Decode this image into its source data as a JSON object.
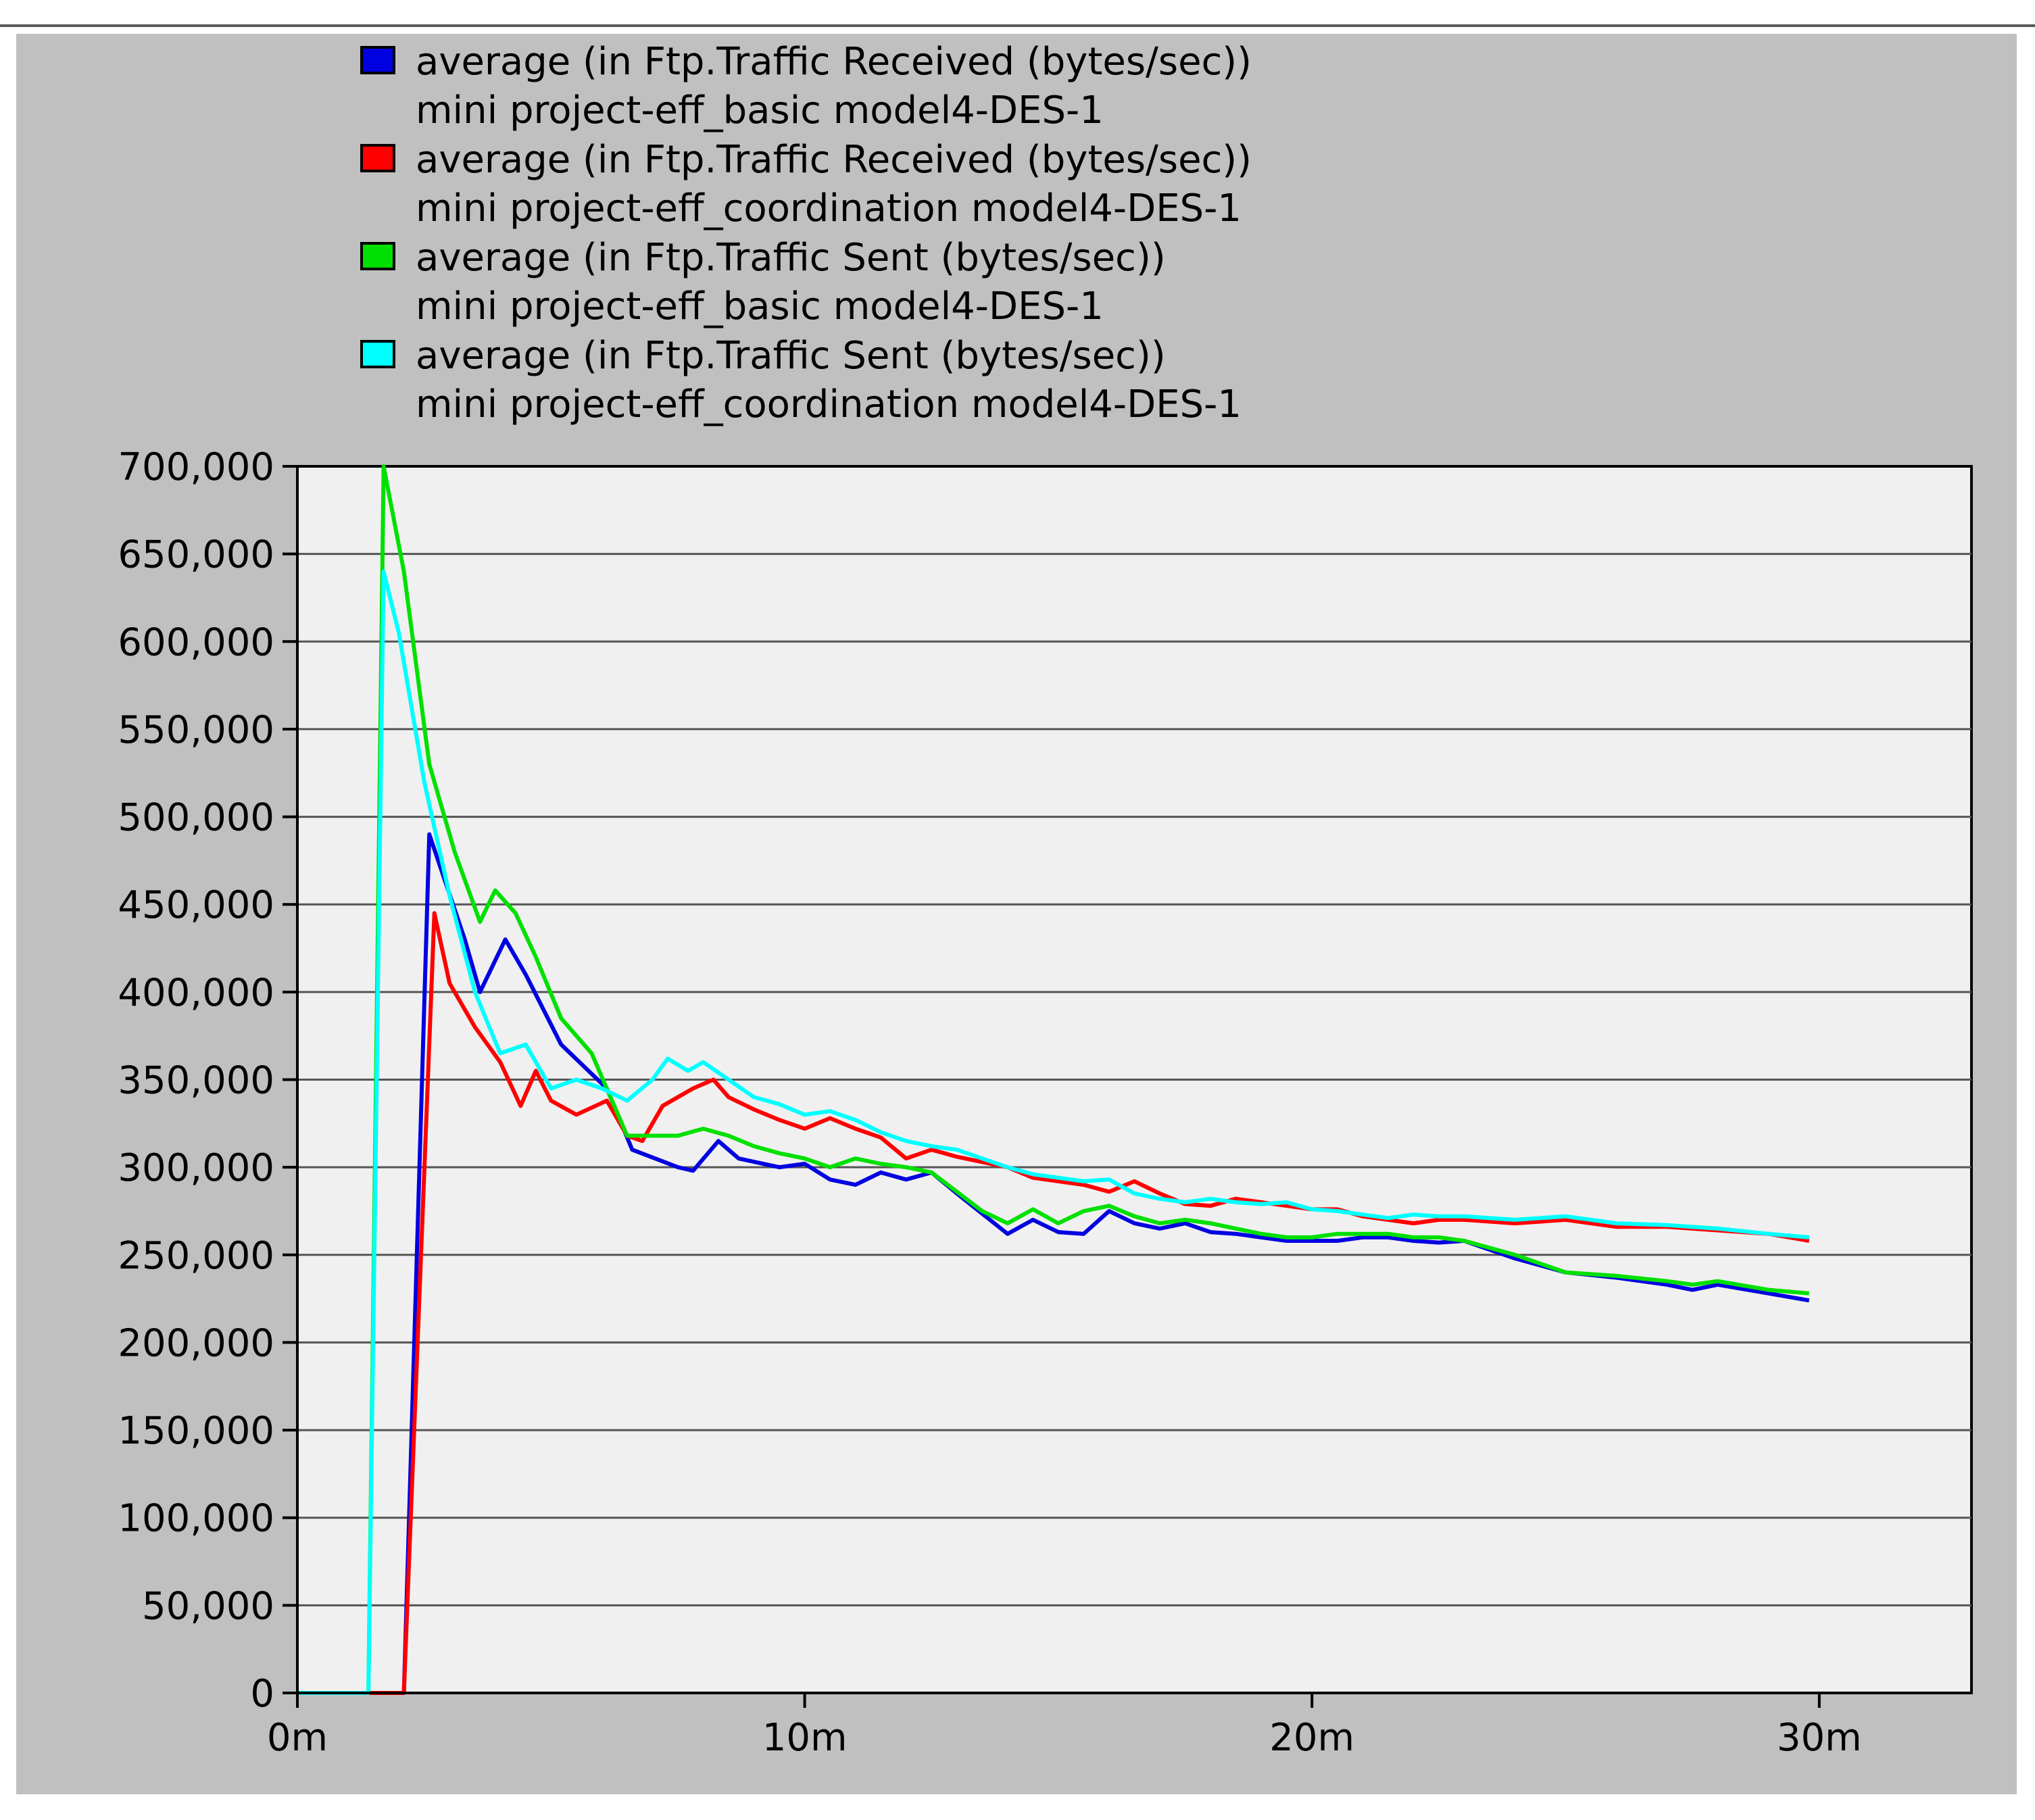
{
  "chart_data": {
    "type": "line",
    "title": "",
    "xlabel": "",
    "ylabel": "",
    "xlim": [
      0,
      33
    ],
    "ylim": [
      0,
      700000
    ],
    "x_ticks": [
      {
        "value": 0,
        "label": "0m"
      },
      {
        "value": 10,
        "label": "10m"
      },
      {
        "value": 20,
        "label": "20m"
      },
      {
        "value": 30,
        "label": "30m"
      }
    ],
    "y_ticks": [
      {
        "value": 0,
        "label": "0"
      },
      {
        "value": 50000,
        "label": "50,000"
      },
      {
        "value": 100000,
        "label": "100,000"
      },
      {
        "value": 150000,
        "label": "150,000"
      },
      {
        "value": 200000,
        "label": "200,000"
      },
      {
        "value": 250000,
        "label": "250,000"
      },
      {
        "value": 300000,
        "label": "300,000"
      },
      {
        "value": 350000,
        "label": "350,000"
      },
      {
        "value": 400000,
        "label": "400,000"
      },
      {
        "value": 450000,
        "label": "450,000"
      },
      {
        "value": 500000,
        "label": "500,000"
      },
      {
        "value": 550000,
        "label": "550,000"
      },
      {
        "value": 600000,
        "label": "600,000"
      },
      {
        "value": 650000,
        "label": "650,000"
      },
      {
        "value": 700000,
        "label": "700,000"
      }
    ],
    "grid": "horizontal",
    "legend_position": "top",
    "series": [
      {
        "name": "average (in Ftp.Traffic Received (bytes/sec))",
        "name_line2": "mini project-eff_basic model4-DES-1",
        "color": "#0000e0",
        "points": [
          [
            0,
            0
          ],
          [
            2.1,
            0
          ],
          [
            2.6,
            490000
          ],
          [
            3.3,
            430000
          ],
          [
            3.6,
            400000
          ],
          [
            4.1,
            430000
          ],
          [
            4.5,
            410000
          ],
          [
            5.2,
            370000
          ],
          [
            6.1,
            345000
          ],
          [
            6.6,
            310000
          ],
          [
            7.5,
            300000
          ],
          [
            7.8,
            298000
          ],
          [
            8.3,
            315000
          ],
          [
            8.7,
            305000
          ],
          [
            9.5,
            300000
          ],
          [
            10.0,
            302000
          ],
          [
            10.5,
            293000
          ],
          [
            11.0,
            290000
          ],
          [
            11.5,
            297000
          ],
          [
            12.0,
            293000
          ],
          [
            12.5,
            297000
          ],
          [
            13.0,
            285000
          ],
          [
            14.0,
            262000
          ],
          [
            14.5,
            270000
          ],
          [
            15.0,
            263000
          ],
          [
            15.5,
            262000
          ],
          [
            16.0,
            275000
          ],
          [
            16.5,
            268000
          ],
          [
            17.0,
            265000
          ],
          [
            17.5,
            268000
          ],
          [
            18.0,
            263000
          ],
          [
            18.5,
            262000
          ],
          [
            19.0,
            260000
          ],
          [
            19.5,
            258000
          ],
          [
            20.0,
            258000
          ],
          [
            20.5,
            258000
          ],
          [
            21.0,
            260000
          ],
          [
            21.5,
            260000
          ],
          [
            22.0,
            258000
          ],
          [
            22.5,
            257000
          ],
          [
            23.0,
            258000
          ],
          [
            24.0,
            248000
          ],
          [
            25.0,
            240000
          ],
          [
            26.0,
            237000
          ],
          [
            27.0,
            233000
          ],
          [
            27.5,
            230000
          ],
          [
            28.0,
            233000
          ],
          [
            29.0,
            228000
          ],
          [
            29.8,
            224000
          ]
        ]
      },
      {
        "name": "average (in Ftp.Traffic Received (bytes/sec))",
        "name_line2": "mini project-eff_coordination model4-DES-1",
        "color": "#ff0000",
        "points": [
          [
            0,
            0
          ],
          [
            2.1,
            0
          ],
          [
            2.7,
            445000
          ],
          [
            3.0,
            405000
          ],
          [
            3.5,
            380000
          ],
          [
            4.0,
            360000
          ],
          [
            4.4,
            335000
          ],
          [
            4.7,
            355000
          ],
          [
            5.0,
            338000
          ],
          [
            5.5,
            330000
          ],
          [
            6.1,
            338000
          ],
          [
            6.5,
            318000
          ],
          [
            6.8,
            315000
          ],
          [
            7.2,
            335000
          ],
          [
            7.8,
            345000
          ],
          [
            8.2,
            350000
          ],
          [
            8.5,
            340000
          ],
          [
            9.0,
            333000
          ],
          [
            9.5,
            327000
          ],
          [
            10.0,
            322000
          ],
          [
            10.5,
            328000
          ],
          [
            11.0,
            322000
          ],
          [
            11.5,
            317000
          ],
          [
            12.0,
            305000
          ],
          [
            12.5,
            310000
          ],
          [
            13.0,
            306000
          ],
          [
            13.5,
            303000
          ],
          [
            14.0,
            300000
          ],
          [
            14.5,
            294000
          ],
          [
            15.0,
            292000
          ],
          [
            15.5,
            290000
          ],
          [
            16.0,
            286000
          ],
          [
            16.5,
            292000
          ],
          [
            17.0,
            285000
          ],
          [
            17.5,
            279000
          ],
          [
            18.0,
            278000
          ],
          [
            18.5,
            282000
          ],
          [
            19.0,
            280000
          ],
          [
            19.5,
            278000
          ],
          [
            20.0,
            276000
          ],
          [
            20.5,
            276000
          ],
          [
            21.0,
            272000
          ],
          [
            21.5,
            270000
          ],
          [
            22.0,
            268000
          ],
          [
            22.5,
            270000
          ],
          [
            23.0,
            270000
          ],
          [
            24.0,
            268000
          ],
          [
            25.0,
            270000
          ],
          [
            26.0,
            266000
          ],
          [
            27.0,
            266000
          ],
          [
            28.0,
            264000
          ],
          [
            29.0,
            262000
          ],
          [
            29.8,
            258000
          ]
        ]
      },
      {
        "name": "average (in Ftp.Traffic Sent (bytes/sec))",
        "name_line2": "mini project-eff_basic model4-DES-1",
        "color": "#00e000",
        "points": [
          [
            0,
            0
          ],
          [
            1.4,
            0
          ],
          [
            1.7,
            700000
          ],
          [
            2.1,
            640000
          ],
          [
            2.6,
            530000
          ],
          [
            3.1,
            480000
          ],
          [
            3.6,
            440000
          ],
          [
            3.9,
            458000
          ],
          [
            4.3,
            445000
          ],
          [
            4.7,
            420000
          ],
          [
            5.2,
            385000
          ],
          [
            5.8,
            365000
          ],
          [
            6.5,
            318000
          ],
          [
            7.0,
            318000
          ],
          [
            7.5,
            318000
          ],
          [
            8.0,
            322000
          ],
          [
            8.5,
            318000
          ],
          [
            9.0,
            312000
          ],
          [
            9.5,
            308000
          ],
          [
            10.0,
            305000
          ],
          [
            10.5,
            300000
          ],
          [
            11.0,
            305000
          ],
          [
            11.5,
            302000
          ],
          [
            12.0,
            300000
          ],
          [
            12.5,
            297000
          ],
          [
            13.0,
            286000
          ],
          [
            13.5,
            275000
          ],
          [
            14.0,
            268000
          ],
          [
            14.5,
            276000
          ],
          [
            15.0,
            268000
          ],
          [
            15.5,
            275000
          ],
          [
            16.0,
            278000
          ],
          [
            16.5,
            272000
          ],
          [
            17.0,
            268000
          ],
          [
            17.5,
            270000
          ],
          [
            18.0,
            268000
          ],
          [
            18.5,
            265000
          ],
          [
            19.0,
            262000
          ],
          [
            19.5,
            260000
          ],
          [
            20.0,
            260000
          ],
          [
            20.5,
            262000
          ],
          [
            21.0,
            262000
          ],
          [
            21.5,
            262000
          ],
          [
            22.0,
            260000
          ],
          [
            22.5,
            260000
          ],
          [
            23.0,
            258000
          ],
          [
            24.0,
            250000
          ],
          [
            25.0,
            240000
          ],
          [
            26.0,
            238000
          ],
          [
            27.0,
            235000
          ],
          [
            27.5,
            233000
          ],
          [
            28.0,
            235000
          ],
          [
            29.0,
            230000
          ],
          [
            29.8,
            228000
          ]
        ]
      },
      {
        "name": "average (in Ftp.Traffic Sent (bytes/sec))",
        "name_line2": "mini project-eff_coordination model4-DES-1",
        "color": "#00ffff",
        "points": [
          [
            0,
            0
          ],
          [
            1.4,
            0
          ],
          [
            1.7,
            640000
          ],
          [
            2.0,
            605000
          ],
          [
            2.5,
            520000
          ],
          [
            3.0,
            455000
          ],
          [
            3.5,
            400000
          ],
          [
            4.0,
            365000
          ],
          [
            4.5,
            370000
          ],
          [
            5.0,
            345000
          ],
          [
            5.5,
            350000
          ],
          [
            6.0,
            345000
          ],
          [
            6.5,
            338000
          ],
          [
            7.0,
            350000
          ],
          [
            7.3,
            362000
          ],
          [
            7.7,
            355000
          ],
          [
            8.0,
            360000
          ],
          [
            8.5,
            350000
          ],
          [
            9.0,
            340000
          ],
          [
            9.5,
            336000
          ],
          [
            10.0,
            330000
          ],
          [
            10.5,
            332000
          ],
          [
            11.0,
            327000
          ],
          [
            11.5,
            320000
          ],
          [
            12.0,
            315000
          ],
          [
            12.5,
            312000
          ],
          [
            13.0,
            310000
          ],
          [
            13.5,
            305000
          ],
          [
            14.0,
            300000
          ],
          [
            14.5,
            296000
          ],
          [
            15.0,
            294000
          ],
          [
            15.5,
            292000
          ],
          [
            16.0,
            293000
          ],
          [
            16.5,
            285000
          ],
          [
            17.0,
            282000
          ],
          [
            17.5,
            280000
          ],
          [
            18.0,
            282000
          ],
          [
            18.5,
            280000
          ],
          [
            19.0,
            279000
          ],
          [
            19.5,
            280000
          ],
          [
            20.0,
            276000
          ],
          [
            20.5,
            275000
          ],
          [
            21.0,
            273000
          ],
          [
            21.5,
            271000
          ],
          [
            22.0,
            273000
          ],
          [
            22.5,
            272000
          ],
          [
            23.0,
            272000
          ],
          [
            24.0,
            270000
          ],
          [
            25.0,
            272000
          ],
          [
            26.0,
            268000
          ],
          [
            27.0,
            267000
          ],
          [
            28.0,
            265000
          ],
          [
            29.0,
            262000
          ],
          [
            29.8,
            260000
          ]
        ]
      }
    ]
  }
}
